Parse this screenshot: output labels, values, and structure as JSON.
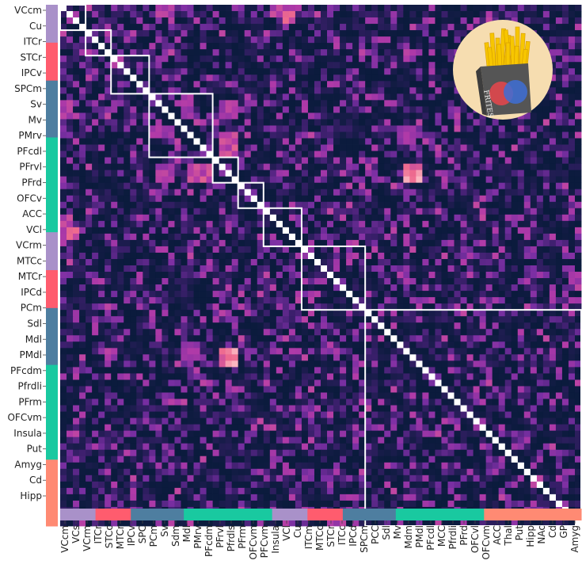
{
  "chart_data": {
    "type": "heatmap",
    "title": "",
    "xlabel": "",
    "ylabel": "",
    "colorscale": [
      "#0b1b3d",
      "#3a1f6b",
      "#7a2fa3",
      "#b13aa8",
      "#ee6a8f",
      "#ffd2d2",
      "#ffffff"
    ],
    "n": 82,
    "y_tick_labels": [
      "VCcm",
      "Cu",
      "ITCr",
      "STCr",
      "IPCv",
      "SPCm",
      "Sv",
      "Mv",
      "PMrv",
      "PFcdl",
      "PFrvl",
      "PFrd",
      "OFCv",
      "ACC",
      "VCl",
      "VCrm",
      "MTCc",
      "MTCr",
      "IPCd",
      "PCm",
      "Sdl",
      "Mdl",
      "PMdl",
      "PFcdm",
      "Pfrdli",
      "PFrm",
      "OFCvm",
      "Insula",
      "Put",
      "Amyg",
      "Cd",
      "Hipp"
    ],
    "x_tick_labels": [
      "VCcm",
      "VCs",
      "VCrm",
      "ITCr",
      "STCc",
      "MTCr",
      "IPCv",
      "SPC",
      "PCm",
      "Sv",
      "Sdm",
      "Mdl",
      "PMrv",
      "PFcdm",
      "PFrvl",
      "Pfrdls",
      "PFrm",
      "OFCvm",
      "PFCvm",
      "Insula",
      "VCl",
      "Cu",
      "ITCm",
      "MTCc",
      "STCr",
      "ITCc",
      "IPCd",
      "SPCm",
      "PCC",
      "Sdl",
      "Mv",
      "Mdm",
      "PMdl",
      "PFcdl",
      "MCC",
      "Pfrdli",
      "PFrd",
      "OFCvl",
      "OFCvm",
      "ACC",
      "Thal",
      "Put",
      "Hipp",
      "NAc",
      "Cd",
      "GP",
      "Amyg"
    ],
    "row_group_colors": [
      "#a991c9",
      "#ff5c6e",
      "#4e7ea0",
      "#19c9a0",
      "#a991c9",
      "#ff5c6e",
      "#4e7ea0",
      "#19c9a0",
      "#ff8a73"
    ],
    "row_group_sizes": [
      4,
      4,
      6,
      10,
      4,
      4,
      6,
      10,
      7
    ],
    "x_group_colors": [
      "#a991c9",
      "#ff5c6e",
      "#4e7ea0",
      "#19c9a0",
      "#a991c9",
      "#ff5c6e",
      "#4e7ea0",
      "#19c9a0",
      "#ff8a73"
    ],
    "x_group_sizes": [
      4,
      4,
      6,
      10,
      4,
      4,
      6,
      10,
      11
    ],
    "block_starts": [
      0,
      4,
      8,
      14,
      24,
      28,
      32,
      38,
      48
    ],
    "block_sizes": [
      4,
      4,
      6,
      10,
      4,
      4,
      6,
      10,
      6
    ],
    "diagonal": "white",
    "hot_spots": [
      {
        "rows": [
          0,
          1
        ],
        "cols": [
          33,
          36
        ],
        "value": 0.6
      },
      {
        "rows": [
          15,
          17
        ],
        "cols": [
          0,
          1
        ],
        "value": 0.55
      },
      {
        "rows": [
          19,
          20
        ],
        "cols": [
          14,
          17
        ],
        "value": 0.55
      },
      {
        "rows": [
          25,
          27
        ],
        "cols": [
          20,
          23
        ],
        "value": 0.65
      },
      {
        "rows": [
          25,
          27
        ],
        "cols": [
          15,
          17
        ],
        "value": 0.55
      },
      {
        "rows": [
          26,
          27
        ],
        "cols": [
          54,
          56
        ],
        "value": 0.8
      },
      {
        "rows": [
          54,
          56
        ],
        "cols": [
          25,
          27
        ],
        "value": 0.8
      },
      {
        "rows": [
          53,
          55
        ],
        "cols": [
          19,
          21
        ],
        "value": 0.5
      },
      {
        "rows": [
          1,
          2
        ],
        "cols": [
          35,
          36
        ],
        "value": 0.7
      }
    ]
  },
  "logo": {
    "name": "fries-logo-icon",
    "background": "#f6ddb0",
    "box_color": "#555555",
    "fries_color": "#f7c600",
    "circle_a": "#e0474c",
    "circle_b": "#3e6fd6",
    "box_text": "FRITES"
  }
}
